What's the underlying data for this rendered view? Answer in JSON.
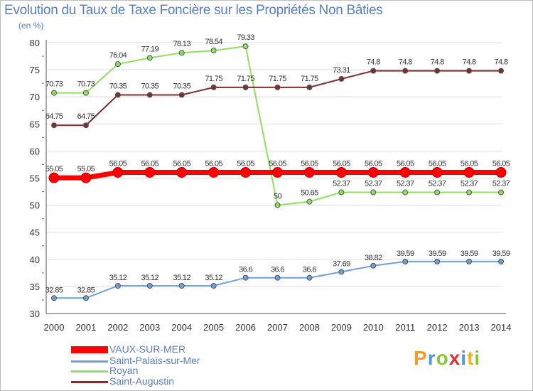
{
  "chart_data": {
    "type": "line",
    "title": "Evolution du Taux de Taxe Foncière sur les Propriétés Non Bâties",
    "ylabel": "(en %)",
    "xlabel": "",
    "ylim": [
      30,
      80
    ],
    "yticks": [
      30,
      35,
      40,
      45,
      50,
      55,
      60,
      65,
      70,
      75,
      80
    ],
    "categories": [
      "2000",
      "2001",
      "2002",
      "2003",
      "2004",
      "2005",
      "2006",
      "2007",
      "2008",
      "2009",
      "2010",
      "2011",
      "2012",
      "2013",
      "2014"
    ],
    "series": [
      {
        "name": "VAUX-SUR-MER",
        "color": "#ff0000",
        "values": [
          55.05,
          55.05,
          56.05,
          56.05,
          56.05,
          56.05,
          56.05,
          56.05,
          56.05,
          56.05,
          56.05,
          56.05,
          56.05,
          56.05,
          56.05
        ],
        "labels": [
          "55.05",
          "55.05",
          "56.05",
          "56.05",
          "56.05",
          "56.05",
          "56.05",
          "56.05",
          "56.05",
          "56.05",
          "56.05",
          "56.05",
          "56.05",
          "56.05",
          "56.05"
        ]
      },
      {
        "name": "Saint-Palais-sur-Mer",
        "color": "#6fa0d6",
        "values": [
          32.85,
          32.85,
          35.12,
          35.12,
          35.12,
          35.12,
          36.6,
          36.6,
          36.6,
          37.69,
          38.82,
          39.59,
          39.59,
          39.59,
          39.59
        ],
        "labels": [
          "32.85",
          "32.85",
          "35.12",
          "35.12",
          "35.12",
          "35.12",
          "36.6",
          "36.6",
          "36.6",
          "37.69",
          "38.82",
          "39.59",
          "39.59",
          "39.59",
          "39.59"
        ]
      },
      {
        "name": "Royan",
        "color": "#90e060",
        "values": [
          70.73,
          70.73,
          76.04,
          77.19,
          78.13,
          78.54,
          79.33,
          50,
          50.65,
          52.37,
          52.37,
          52.37,
          52.37,
          52.37,
          52.37
        ],
        "labels": [
          "70.73",
          "70.73",
          "76.04",
          "77.19",
          "78.13",
          "78.54",
          "79.33",
          "50",
          "50.65",
          "52.37",
          "52.37",
          "52.37",
          "52.37",
          "52.37",
          "52.37"
        ]
      },
      {
        "name": "Saint-Augustin",
        "color": "#7a3030",
        "values": [
          64.75,
          64.75,
          70.35,
          70.35,
          70.35,
          71.75,
          71.75,
          71.75,
          71.75,
          73.31,
          74.8,
          74.8,
          74.8,
          74.8,
          74.8
        ],
        "labels": [
          "64.75",
          "64.75",
          "70.35",
          "70.35",
          "70.35",
          "71.75",
          "71.75",
          "71.75",
          "71.75",
          "73.31",
          "74.8",
          "74.8",
          "74.8",
          "74.8",
          "74.8"
        ]
      }
    ]
  },
  "logo": {
    "letters": [
      {
        "ch": "P",
        "color": "#f29b2c"
      },
      {
        "ch": "r",
        "color": "#4a9ad6"
      },
      {
        "ch": "o",
        "color": "#8cc43c"
      },
      {
        "ch": "x",
        "color": "#e03030"
      },
      {
        "ch": "i",
        "color": "#4a9ad6"
      },
      {
        "ch": "t",
        "color": "#f2b02c"
      },
      {
        "ch": "i",
        "color": "#8cc43c"
      }
    ]
  }
}
